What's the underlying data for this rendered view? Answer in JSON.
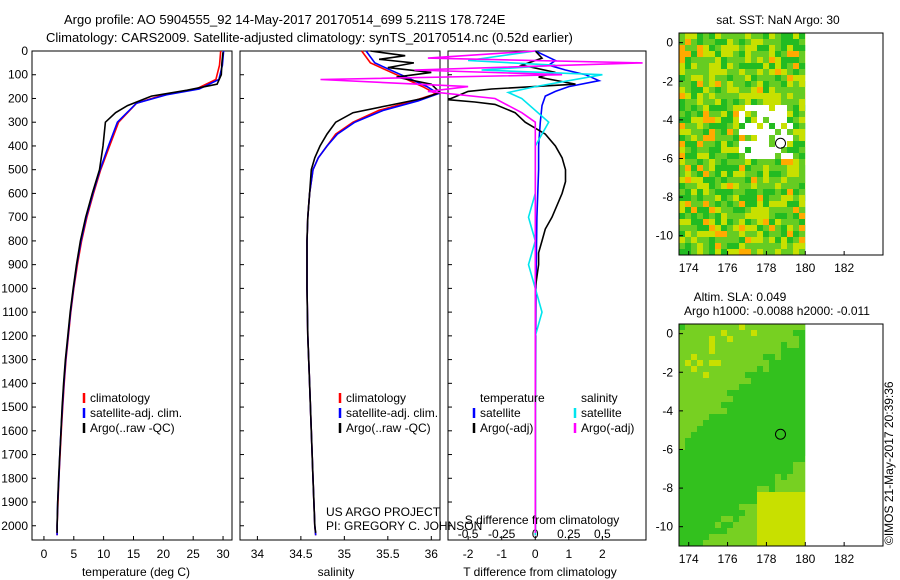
{
  "header": {
    "line1": "Argo profile: AO 5904555_92 14-May-2017 20170514_699 5.211S 178.724E",
    "line2": "Climatology: CARS2009. Satellite-adjusted climatology: synTS_20170514.nc (0.52d earlier)"
  },
  "footer": {
    "project": "US ARGO PROJECT",
    "pi": "PI: GREGORY C. JOHNSON",
    "stamp": "©IMOS 21-May-2017 20:39:36"
  },
  "colors": {
    "red": "#ff0000",
    "blue": "#0000ff",
    "black": "#000000",
    "cyan": "#00e5ee",
    "magenta": "#ff00ff",
    "map_green": "#22bb22",
    "map_yellow": "#c8e000",
    "map_orange": "#ffaa00"
  },
  "chart_data": [
    {
      "type": "line",
      "name": "temperature",
      "xlabel": "temperature (deg C)",
      "xlim": [
        -2,
        31.5
      ],
      "xticks": [
        0,
        5,
        10,
        15,
        20,
        25,
        30
      ],
      "ylim": [
        0,
        2060
      ],
      "yticks": [
        0,
        100,
        200,
        300,
        400,
        500,
        600,
        700,
        800,
        900,
        1000,
        1100,
        1200,
        1300,
        1400,
        1500,
        1600,
        1700,
        1800,
        1900,
        2000
      ],
      "legend": [
        "climatology",
        "satellite-adj. clim.",
        "Argo(..raw -QC)"
      ],
      "series": [
        {
          "name": "climatology",
          "color": "red",
          "points": [
            [
              29.6,
              0
            ],
            [
              29.4,
              60
            ],
            [
              28.8,
              120
            ],
            [
              25.5,
              160
            ],
            [
              20,
              185
            ],
            [
              15.5,
              220
            ],
            [
              12.5,
              300
            ],
            [
              11,
              400
            ],
            [
              9.5,
              500
            ],
            [
              8.3,
              600
            ],
            [
              7.2,
              700
            ],
            [
              6.3,
              800
            ],
            [
              5.6,
              900
            ],
            [
              5.0,
              1000
            ],
            [
              4.5,
              1100
            ],
            [
              4.1,
              1200
            ],
            [
              3.7,
              1300
            ],
            [
              3.4,
              1400
            ],
            [
              3.15,
              1500
            ],
            [
              2.9,
              1600
            ],
            [
              2.7,
              1700
            ],
            [
              2.5,
              1800
            ],
            [
              2.35,
              1900
            ],
            [
              2.2,
              2000
            ],
            [
              2.2,
              2040
            ]
          ]
        },
        {
          "name": "satellite-adj. clim.",
          "color": "blue",
          "points": [
            [
              30.1,
              0
            ],
            [
              29.9,
              60
            ],
            [
              29.3,
              120
            ],
            [
              26,
              160
            ],
            [
              20.5,
              185
            ],
            [
              15.5,
              220
            ],
            [
              12.3,
              300
            ],
            [
              10.8,
              400
            ],
            [
              9.4,
              500
            ],
            [
              8.2,
              600
            ],
            [
              7.1,
              700
            ],
            [
              6.2,
              800
            ],
            [
              5.5,
              900
            ],
            [
              4.95,
              1000
            ],
            [
              4.45,
              1100
            ],
            [
              4.05,
              1200
            ],
            [
              3.65,
              1300
            ],
            [
              3.35,
              1400
            ],
            [
              3.1,
              1500
            ],
            [
              2.85,
              1600
            ],
            [
              2.65,
              1700
            ],
            [
              2.5,
              1800
            ],
            [
              2.3,
              1900
            ],
            [
              2.2,
              2000
            ],
            [
              2.2,
              2040
            ]
          ]
        },
        {
          "name": "Argo(..raw -QC)",
          "color": "black",
          "points": [
            [
              30.0,
              5
            ],
            [
              29.8,
              50
            ],
            [
              29.7,
              100
            ],
            [
              29.0,
              140
            ],
            [
              24,
              165
            ],
            [
              18,
              190
            ],
            [
              14,
              230
            ],
            [
              12,
              260
            ],
            [
              10.3,
              300
            ],
            [
              9.9,
              400
            ],
            [
              9.3,
              500
            ],
            [
              8.1,
              600
            ],
            [
              7.0,
              700
            ],
            [
              6.1,
              800
            ],
            [
              5.45,
              900
            ],
            [
              4.9,
              1000
            ],
            [
              4.4,
              1100
            ],
            [
              4.0,
              1200
            ],
            [
              3.6,
              1300
            ],
            [
              3.3,
              1400
            ],
            [
              3.05,
              1500
            ],
            [
              2.85,
              1600
            ],
            [
              2.65,
              1700
            ],
            [
              2.45,
              1800
            ],
            [
              2.3,
              1900
            ],
            [
              2.2,
              2000
            ],
            [
              2.2,
              2030
            ]
          ]
        }
      ]
    },
    {
      "type": "line",
      "name": "salinity",
      "xlabel": "salinity",
      "xlim": [
        33.8,
        36.1
      ],
      "xticks": [
        34,
        34.5,
        35,
        35.5,
        36
      ],
      "ylim": [
        0,
        2060
      ],
      "legend": [
        "climatology",
        "satellite-adj. clim.",
        "Argo(..raw -QC)"
      ],
      "series": [
        {
          "name": "climatology",
          "color": "red",
          "points": [
            [
              35.2,
              0
            ],
            [
              35.3,
              50
            ],
            [
              35.6,
              100
            ],
            [
              35.9,
              150
            ],
            [
              36.05,
              180
            ],
            [
              35.8,
              210
            ],
            [
              35.4,
              250
            ],
            [
              35.1,
              300
            ],
            [
              34.9,
              350
            ],
            [
              34.8,
              400
            ],
            [
              34.7,
              450
            ],
            [
              34.64,
              500
            ],
            [
              34.6,
              600
            ],
            [
              34.58,
              700
            ],
            [
              34.57,
              800
            ],
            [
              34.57,
              1000
            ],
            [
              34.58,
              1200
            ],
            [
              34.6,
              1400
            ],
            [
              34.62,
              1600
            ],
            [
              34.64,
              1800
            ],
            [
              34.66,
              2000
            ],
            [
              34.67,
              2040
            ]
          ]
        },
        {
          "name": "satellite-adj. clim.",
          "color": "blue",
          "points": [
            [
              35.25,
              0
            ],
            [
              35.35,
              50
            ],
            [
              35.65,
              100
            ],
            [
              35.95,
              150
            ],
            [
              36.08,
              180
            ],
            [
              35.85,
              210
            ],
            [
              35.45,
              250
            ],
            [
              35.12,
              300
            ],
            [
              34.92,
              350
            ],
            [
              34.8,
              400
            ],
            [
              34.7,
              450
            ],
            [
              34.64,
              500
            ],
            [
              34.6,
              600
            ],
            [
              34.58,
              700
            ],
            [
              34.57,
              800
            ],
            [
              34.57,
              1000
            ],
            [
              34.58,
              1200
            ],
            [
              34.6,
              1400
            ],
            [
              34.62,
              1600
            ],
            [
              34.64,
              1800
            ],
            [
              34.66,
              2000
            ],
            [
              34.67,
              2040
            ]
          ]
        },
        {
          "name": "Argo(..raw -QC)",
          "color": "black",
          "points": [
            [
              35.3,
              0
            ],
            [
              35.7,
              20
            ],
            [
              35.4,
              35
            ],
            [
              35.8,
              50
            ],
            [
              35.5,
              70
            ],
            [
              36.0,
              90
            ],
            [
              35.6,
              110
            ],
            [
              36.0,
              140
            ],
            [
              36.1,
              175
            ],
            [
              35.9,
              200
            ],
            [
              35.5,
              230
            ],
            [
              35.1,
              260
            ],
            [
              34.9,
              300
            ],
            [
              34.8,
              350
            ],
            [
              34.72,
              400
            ],
            [
              34.66,
              450
            ],
            [
              34.62,
              500
            ],
            [
              34.6,
              600
            ],
            [
              34.58,
              700
            ],
            [
              34.57,
              800
            ],
            [
              34.57,
              1000
            ],
            [
              34.58,
              1200
            ],
            [
              34.6,
              1400
            ],
            [
              34.62,
              1600
            ],
            [
              34.64,
              1800
            ],
            [
              34.66,
              2000
            ],
            [
              34.67,
              2030
            ]
          ]
        }
      ]
    },
    {
      "type": "line",
      "name": "difference",
      "xlabel": "T difference from climatology",
      "xlabel_top": "S difference from climatology",
      "xlim_T": [
        -2.6,
        3.3
      ],
      "xticks_T": [
        -2,
        -1,
        0,
        1,
        2
      ],
      "xticks_S": [
        "-0.5",
        "-0.25",
        "0",
        "0.25",
        "0.5"
      ],
      "legend_temperature": {
        "title": "temperature",
        "items": [
          "satellite",
          "Argo(-adj)"
        ]
      },
      "legend_salinity": {
        "title": "salinity",
        "items": [
          "satellite",
          "Argo(-adj)"
        ]
      },
      "series": [
        {
          "name": "T satellite",
          "color": "blue",
          "points": [
            [
              0.0,
              0
            ],
            [
              0.3,
              20
            ],
            [
              0.6,
              40
            ],
            [
              0.4,
              60
            ],
            [
              0.9,
              80
            ],
            [
              1.5,
              100
            ],
            [
              1.9,
              125
            ],
            [
              1.0,
              150
            ],
            [
              0.6,
              170
            ],
            [
              0.3,
              190
            ],
            [
              0.2,
              230
            ],
            [
              0.15,
              300
            ],
            [
              0.1,
              400
            ],
            [
              0.1,
              500
            ],
            [
              0.05,
              700
            ],
            [
              0.02,
              1000
            ],
            [
              0.0,
              1500
            ],
            [
              0.0,
              2040
            ]
          ]
        },
        {
          "name": "T Argo(-adj)",
          "color": "black",
          "points": [
            [
              0.0,
              0
            ],
            [
              0.2,
              30
            ],
            [
              -0.4,
              60
            ],
            [
              0.6,
              90
            ],
            [
              0.1,
              110
            ],
            [
              1.2,
              140
            ],
            [
              -1.3,
              160
            ],
            [
              -2.0,
              170
            ],
            [
              -2.6,
              205
            ],
            [
              -1.8,
              215
            ],
            [
              -1.2,
              225
            ],
            [
              -0.6,
              260
            ],
            [
              -0.3,
              300
            ],
            [
              0.3,
              350
            ],
            [
              0.6,
              400
            ],
            [
              0.8,
              450
            ],
            [
              0.9,
              500
            ],
            [
              0.9,
              550
            ],
            [
              0.8,
              600
            ],
            [
              0.5,
              700
            ],
            [
              0.3,
              750
            ],
            [
              0.2,
              800
            ],
            [
              0.1,
              850
            ],
            [
              0.1,
              900
            ],
            [
              0.0,
              1000
            ],
            [
              0.0,
              1500
            ],
            [
              0.0,
              2000
            ],
            [
              0.0,
              2030
            ]
          ]
        },
        {
          "name": "S satellite",
          "color": "cyan",
          "points": [
            [
              0.0,
              0
            ],
            [
              -0.5,
              40
            ],
            [
              0.15,
              60
            ],
            [
              -0.4,
              80
            ],
            [
              0.5,
              100
            ],
            [
              0.0,
              150
            ],
            [
              -0.2,
              175
            ],
            [
              -0.1,
              200
            ],
            [
              0.1,
              300
            ],
            [
              0.0,
              400
            ],
            [
              0.0,
              600
            ],
            [
              -0.05,
              700
            ],
            [
              0.0,
              800
            ],
            [
              -0.05,
              900
            ],
            [
              0.0,
              1000
            ],
            [
              0.05,
              1100
            ],
            [
              0.0,
              1200
            ],
            [
              0.0,
              1500
            ],
            [
              0.0,
              2040
            ]
          ]
        },
        {
          "name": "S Argo(-adj)",
          "color": "magenta",
          "points": [
            [
              0.0,
              0
            ],
            [
              -0.8,
              30
            ],
            [
              0.8,
              50
            ],
            [
              -0.9,
              80
            ],
            [
              0.2,
              100
            ],
            [
              -1.6,
              120
            ],
            [
              -0.5,
              150
            ],
            [
              -0.8,
              170
            ],
            [
              -0.3,
              200
            ],
            [
              -0.1,
              260
            ],
            [
              0.0,
              300
            ],
            [
              0.0,
              400
            ],
            [
              0.0,
              2030
            ]
          ]
        }
      ]
    },
    {
      "type": "heatmap",
      "name": "sst_map",
      "title": "sat. SST: NaN Argo: 30",
      "xlim": [
        173.5,
        184.0
      ],
      "ylim": [
        -11.0,
        0.5
      ],
      "xticks": [
        174,
        176,
        178,
        180,
        182
      ],
      "yticks": [
        0,
        -2,
        -4,
        -6,
        -8,
        -10
      ],
      "data_lon_max": 180,
      "argo_position": [
        178.724,
        -5.211
      ]
    },
    {
      "type": "heatmap",
      "name": "sla_map",
      "title": "Altim. SLA: 0.049",
      "subtitle": "Argo h1000: -0.0088 h2000: -0.011",
      "xlim": [
        173.5,
        184.0
      ],
      "ylim": [
        -11.0,
        0.5
      ],
      "xticks": [
        174,
        176,
        178,
        180,
        182
      ],
      "yticks": [
        0,
        -2,
        -4,
        -6,
        -8,
        -10
      ],
      "data_lon_max": 180,
      "argo_position": [
        178.724,
        -5.211
      ]
    }
  ]
}
